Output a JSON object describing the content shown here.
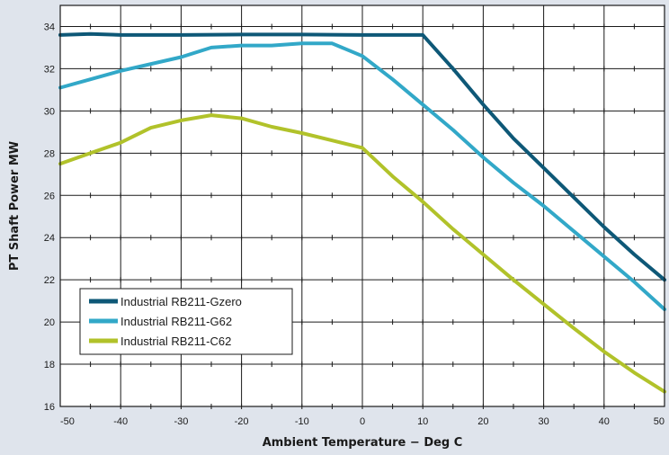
{
  "chart_data": {
    "type": "line",
    "xlabel": "Ambient Temperature − Deg C",
    "ylabel": "PT Shaft Power MW",
    "xlim": [
      -50,
      50
    ],
    "ylim": [
      16,
      35
    ],
    "x_ticks": [
      -50,
      -40,
      -30,
      -20,
      -10,
      0,
      10,
      20,
      30,
      40,
      50
    ],
    "y_ticks": [
      16,
      18,
      20,
      22,
      24,
      26,
      28,
      30,
      32,
      34
    ],
    "grid": true,
    "legend": "bottom-left",
    "series": [
      {
        "name": "Industrial RB211-Gzero",
        "color": "#0e5877",
        "points": [
          [
            -50,
            33.6
          ],
          [
            -45,
            33.65
          ],
          [
            -40,
            33.6
          ],
          [
            -30,
            33.6
          ],
          [
            -20,
            33.62
          ],
          [
            -10,
            33.62
          ],
          [
            0,
            33.6
          ],
          [
            10,
            33.6
          ],
          [
            15,
            32.0
          ],
          [
            20,
            30.3
          ],
          [
            25,
            28.7
          ],
          [
            30,
            27.3
          ],
          [
            35,
            25.9
          ],
          [
            40,
            24.5
          ],
          [
            45,
            23.2
          ],
          [
            50,
            22.0
          ]
        ]
      },
      {
        "name": "Industrial RB211-G62",
        "color": "#32a8c8",
        "points": [
          [
            -50,
            31.1
          ],
          [
            -45,
            31.5
          ],
          [
            -40,
            31.9
          ],
          [
            -30,
            32.55
          ],
          [
            -25,
            33.0
          ],
          [
            -20,
            33.1
          ],
          [
            -15,
            33.1
          ],
          [
            -10,
            33.2
          ],
          [
            -5,
            33.2
          ],
          [
            0,
            32.6
          ],
          [
            5,
            31.5
          ],
          [
            10,
            30.3
          ],
          [
            15,
            29.1
          ],
          [
            20,
            27.8
          ],
          [
            25,
            26.6
          ],
          [
            30,
            25.5
          ],
          [
            35,
            24.3
          ],
          [
            40,
            23.1
          ],
          [
            45,
            21.9
          ],
          [
            50,
            20.6
          ]
        ]
      },
      {
        "name": "Industrial RB211-C62",
        "color": "#b1c22a",
        "points": [
          [
            -50,
            27.5
          ],
          [
            -45,
            28.0
          ],
          [
            -40,
            28.5
          ],
          [
            -35,
            29.2
          ],
          [
            -30,
            29.55
          ],
          [
            -25,
            29.8
          ],
          [
            -20,
            29.65
          ],
          [
            -15,
            29.25
          ],
          [
            -10,
            28.95
          ],
          [
            -5,
            28.6
          ],
          [
            0,
            28.25
          ],
          [
            5,
            26.9
          ],
          [
            10,
            25.7
          ],
          [
            15,
            24.4
          ],
          [
            20,
            23.2
          ],
          [
            25,
            22.0
          ],
          [
            30,
            20.85
          ],
          [
            35,
            19.7
          ],
          [
            40,
            18.6
          ],
          [
            45,
            17.6
          ],
          [
            50,
            16.7
          ]
        ]
      }
    ]
  }
}
